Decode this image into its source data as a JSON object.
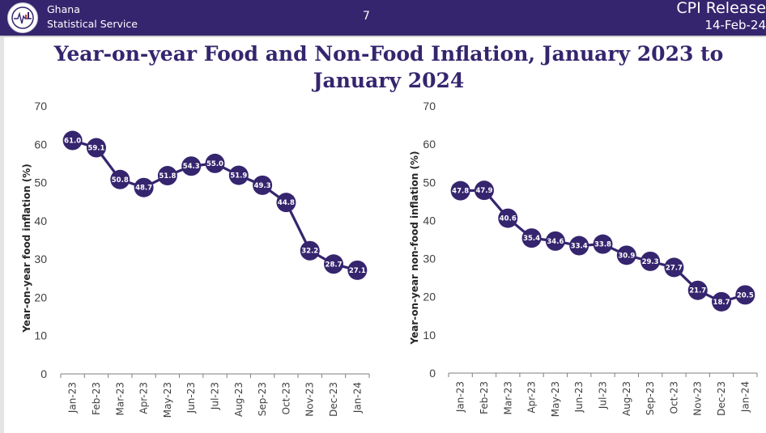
{
  "header": {
    "org_line1": "Ghana",
    "org_line2": "Statistical Service",
    "page_number": "7",
    "release_title": "CPI Release",
    "release_date": "14-Feb-24",
    "logo_icon": "ghana-statistical-service-logo"
  },
  "colors": {
    "brand": "#35256e",
    "marker": "#35256e",
    "axis": "#404040"
  },
  "title": "Year-on-year Food and Non-Food Inflation, January 2023 to January 2024",
  "title_line1": "Year-on-year Food and Non-Food Inflation, January 2023 to",
  "title_line2": "January 2024",
  "chart_data": [
    {
      "type": "line",
      "title": "",
      "ylabel": "Year-on-year food inflation (%)",
      "xlabel": "",
      "ylim": [
        0,
        70
      ],
      "yticks": [
        0,
        10,
        20,
        30,
        40,
        50,
        60,
        70
      ],
      "grid": false,
      "categories": [
        "Jan-23",
        "Feb-23",
        "Mar-23",
        "Apr-23",
        "May-23",
        "Jun-23",
        "Jul-23",
        "Aug-23",
        "Sep-23",
        "Oct-23",
        "Nov-23",
        "Dec-23",
        "Jan-24"
      ],
      "series": [
        {
          "name": "Food inflation",
          "values": [
            61.0,
            59.1,
            50.8,
            48.7,
            51.8,
            54.3,
            55.0,
            51.9,
            49.3,
            44.8,
            32.2,
            28.7,
            27.1
          ]
        }
      ],
      "data_labels": [
        "61.0",
        "59.1",
        "50.8",
        "48.7",
        "51.8",
        "54.3",
        "55.0",
        "51.9",
        "49.3",
        "44.8",
        "32.2",
        "28.7",
        "27.1"
      ]
    },
    {
      "type": "line",
      "title": "",
      "ylabel": "Year-on-year non-food inflation (%)",
      "xlabel": "",
      "ylim": [
        0,
        70
      ],
      "yticks": [
        0,
        10,
        20,
        30,
        40,
        50,
        60,
        70
      ],
      "grid": false,
      "categories": [
        "Jan-23",
        "Feb-23",
        "Mar-23",
        "Apr-23",
        "May-23",
        "Jun-23",
        "Jul-23",
        "Aug-23",
        "Sep-23",
        "Oct-23",
        "Nov-23",
        "Dec-23",
        "Jan-24"
      ],
      "series": [
        {
          "name": "Non-food inflation",
          "values": [
            47.8,
            47.9,
            40.6,
            35.4,
            34.6,
            33.4,
            33.8,
            30.9,
            29.3,
            27.7,
            21.7,
            18.7,
            20.5
          ]
        }
      ],
      "data_labels": [
        "47.8",
        "47.9",
        "40.6",
        "35.4",
        "34.6",
        "33.4",
        "33.8",
        "30.9",
        "29.3",
        "27.7",
        "21.7",
        "18.7",
        "20.5"
      ]
    }
  ]
}
